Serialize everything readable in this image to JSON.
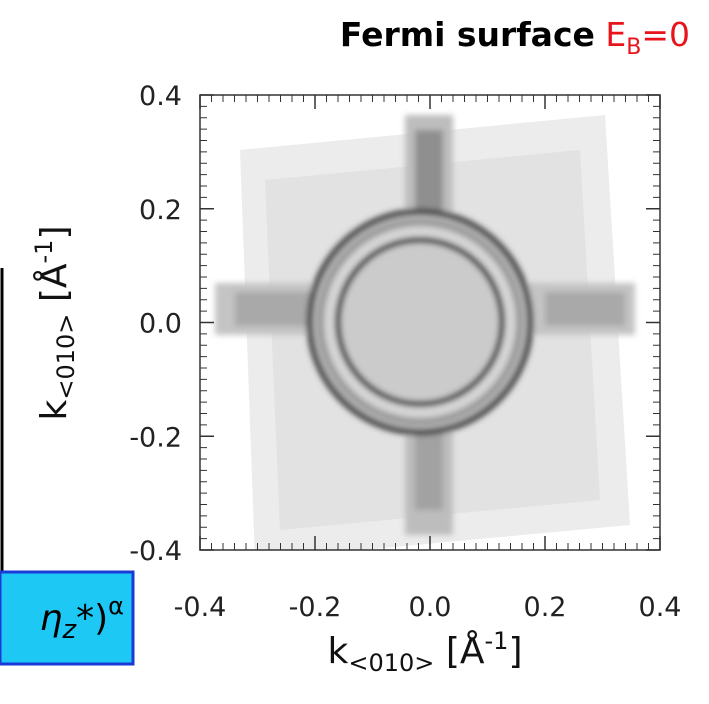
{
  "chart_data": {
    "type": "intensity-map",
    "title": "Fermi surface",
    "title_annotation": {
      "base": "E",
      "sub": "B",
      "rest": "=0",
      "color": "#e8141c"
    },
    "xlabel": {
      "base": "k",
      "sub": "<010>",
      "open": " [Å",
      "sup": "-1",
      "close": "]"
    },
    "ylabel": {
      "base": "k",
      "sub": "<010>",
      "open": " [Å",
      "sup": "-1",
      "close": "]"
    },
    "xlim": [
      -0.4,
      0.4
    ],
    "ylim": [
      -0.4,
      0.4
    ],
    "xticks": [
      -0.4,
      -0.2,
      {
        "value": 0,
        "label": "0.0"
      },
      0.2,
      0.4
    ],
    "yticks": [
      -0.4,
      -0.2,
      {
        "value": 0,
        "label": "0.0"
      },
      0.2,
      0.4
    ]
  },
  "fragment": {
    "base": "η",
    "sub": "z",
    "rest": "*)",
    "sup": "α"
  }
}
